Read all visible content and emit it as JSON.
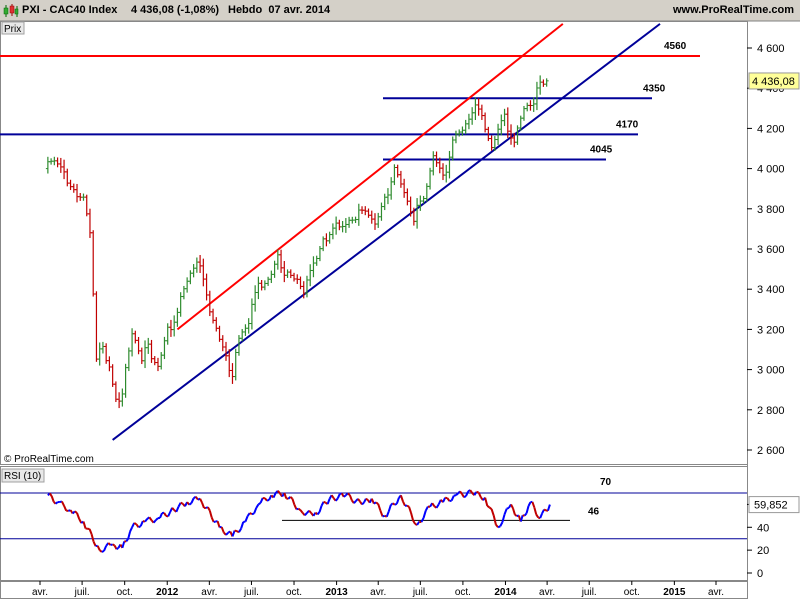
{
  "header": {
    "symbol": "PXI - CAC40 Index",
    "price_change": "4 436,08 (-1,08%)",
    "period_date": "Hebdo  07 avr. 2014",
    "website": "www.ProRealTime.com"
  },
  "colors": {
    "up_bar": "#2e8b2e",
    "down_bar": "#c00000",
    "channel_upper": "#ff0000",
    "channel_lower": "#000099",
    "rsi_line": "#0000ff",
    "price_badge_bg": "#ffff99"
  },
  "chart_data": [
    {
      "type": "ohlc",
      "panel": "price",
      "panel_label": "Prix",
      "current_price_label": "4 436,08",
      "y_ticks": [
        "2 600",
        "2 800",
        "3 000",
        "3 200",
        "3 400",
        "3 600",
        "3 800",
        "4 000",
        "4 200",
        "4 400",
        "4 600"
      ],
      "ylim": [
        2540,
        4720
      ],
      "watermark": "© ProRealTime.com",
      "horizontal_levels": [
        {
          "label": "4560",
          "value": 4560,
          "color": "#ff0000"
        },
        {
          "label": "4350",
          "value": 4350,
          "color": "#000099"
        },
        {
          "label": "4170",
          "value": 4170,
          "color": "#000099"
        },
        {
          "label": "4045",
          "value": 4045,
          "color": "#000099"
        }
      ],
      "trend_lines": [
        {
          "name": "channel-upper",
          "from": {
            "date": "2012-01-23",
            "value": 3200
          },
          "to": {
            "date": "2014-05-05",
            "value": 4720
          }
        },
        {
          "name": "channel-lower",
          "from": {
            "date": "2011-09-05",
            "value": 2650
          },
          "to": {
            "date": "2014-12-01",
            "value": 4720
          }
        }
      ],
      "series": [
        {
          "values": [
            {
              "date": "2011-04-18",
              "c": 4000
            },
            {
              "date": "2011-05-09",
              "c": 4050
            },
            {
              "date": "2011-05-30",
              "c": 3950
            },
            {
              "date": "2011-06-20",
              "c": 3900
            },
            {
              "date": "2011-07-11",
              "c": 3850
            },
            {
              "date": "2011-07-25",
              "c": 3700
            },
            {
              "date": "2011-08-08",
              "c": 3050
            },
            {
              "date": "2011-08-22",
              "c": 3100
            },
            {
              "date": "2011-09-05",
              "c": 3000
            },
            {
              "date": "2011-09-19",
              "c": 2850
            },
            {
              "date": "2011-10-03",
              "c": 2900
            },
            {
              "date": "2011-10-24",
              "c": 3200
            },
            {
              "date": "2011-11-14",
              "c": 3050
            },
            {
              "date": "2011-11-28",
              "c": 3100
            },
            {
              "date": "2011-12-19",
              "c": 3000
            },
            {
              "date": "2012-01-09",
              "c": 3200
            },
            {
              "date": "2012-01-30",
              "c": 3300
            },
            {
              "date": "2012-02-20",
              "c": 3450
            },
            {
              "date": "2012-03-12",
              "c": 3550
            },
            {
              "date": "2012-04-02",
              "c": 3350
            },
            {
              "date": "2012-04-23",
              "c": 3200
            },
            {
              "date": "2012-05-14",
              "c": 3050
            },
            {
              "date": "2012-05-28",
              "c": 3000
            },
            {
              "date": "2012-06-11",
              "c": 3150
            },
            {
              "date": "2012-07-02",
              "c": 3250
            },
            {
              "date": "2012-07-23",
              "c": 3400
            },
            {
              "date": "2012-08-13",
              "c": 3450
            },
            {
              "date": "2012-09-03",
              "c": 3550
            },
            {
              "date": "2012-09-17",
              "c": 3500
            },
            {
              "date": "2012-10-08",
              "c": 3450
            },
            {
              "date": "2012-10-29",
              "c": 3400
            },
            {
              "date": "2012-11-19",
              "c": 3500
            },
            {
              "date": "2012-12-10",
              "c": 3650
            },
            {
              "date": "2013-01-07",
              "c": 3700
            },
            {
              "date": "2013-01-28",
              "c": 3750
            },
            {
              "date": "2013-02-18",
              "c": 3750
            },
            {
              "date": "2013-03-11",
              "c": 3800
            },
            {
              "date": "2013-04-01",
              "c": 3700
            },
            {
              "date": "2013-04-22",
              "c": 3850
            },
            {
              "date": "2013-05-13",
              "c": 4000
            },
            {
              "date": "2013-06-03",
              "c": 3900
            },
            {
              "date": "2013-06-24",
              "c": 3750
            },
            {
              "date": "2013-07-15",
              "c": 3850
            },
            {
              "date": "2013-08-05",
              "c": 4050
            },
            {
              "date": "2013-08-26",
              "c": 3950
            },
            {
              "date": "2013-09-16",
              "c": 4150
            },
            {
              "date": "2013-10-07",
              "c": 4200
            },
            {
              "date": "2013-10-28",
              "c": 4300
            },
            {
              "date": "2013-11-18",
              "c": 4250
            },
            {
              "date": "2013-12-09",
              "c": 4100
            },
            {
              "date": "2014-01-06",
              "c": 4250
            },
            {
              "date": "2014-01-27",
              "c": 4150
            },
            {
              "date": "2014-02-17",
              "c": 4300
            },
            {
              "date": "2014-03-10",
              "c": 4350
            },
            {
              "date": "2014-03-24",
              "c": 4400
            },
            {
              "date": "2014-04-07",
              "c": 4436
            }
          ]
        }
      ]
    },
    {
      "type": "line",
      "panel": "rsi",
      "panel_label": "RSI (10)",
      "current_value_label": "59,852",
      "y_ticks": [
        "0",
        "20",
        "40",
        "60"
      ],
      "ylim": [
        -5,
        85
      ],
      "horizontal_levels": [
        {
          "label": "70",
          "value": 70
        },
        {
          "label": "46",
          "value": 46
        }
      ],
      "series": [
        {
          "values": [
            {
              "date": "2011-04-18",
              "v": 68
            },
            {
              "date": "2011-05-09",
              "v": 62
            },
            {
              "date": "2011-06-06",
              "v": 55
            },
            {
              "date": "2011-07-04",
              "v": 45
            },
            {
              "date": "2011-08-08",
              "v": 20
            },
            {
              "date": "2011-09-05",
              "v": 25
            },
            {
              "date": "2011-09-26",
              "v": 22
            },
            {
              "date": "2011-10-17",
              "v": 40
            },
            {
              "date": "2011-11-14",
              "v": 45
            },
            {
              "date": "2011-12-12",
              "v": 48
            },
            {
              "date": "2012-01-16",
              "v": 55
            },
            {
              "date": "2012-02-13",
              "v": 62
            },
            {
              "date": "2012-03-12",
              "v": 65
            },
            {
              "date": "2012-04-23",
              "v": 40
            },
            {
              "date": "2012-05-21",
              "v": 32
            },
            {
              "date": "2012-06-18",
              "v": 45
            },
            {
              "date": "2012-07-16",
              "v": 60
            },
            {
              "date": "2012-08-13",
              "v": 68
            },
            {
              "date": "2012-09-10",
              "v": 70
            },
            {
              "date": "2012-10-15",
              "v": 55
            },
            {
              "date": "2012-11-12",
              "v": 50
            },
            {
              "date": "2012-12-17",
              "v": 65
            },
            {
              "date": "2013-01-21",
              "v": 68
            },
            {
              "date": "2013-02-25",
              "v": 60
            },
            {
              "date": "2013-03-18",
              "v": 65
            },
            {
              "date": "2013-04-15",
              "v": 50
            },
            {
              "date": "2013-05-20",
              "v": 68
            },
            {
              "date": "2013-06-24",
              "v": 42
            },
            {
              "date": "2013-07-22",
              "v": 58
            },
            {
              "date": "2013-08-19",
              "v": 62
            },
            {
              "date": "2013-09-16",
              "v": 68
            },
            {
              "date": "2013-10-21",
              "v": 70
            },
            {
              "date": "2013-11-18",
              "v": 66
            },
            {
              "date": "2013-12-16",
              "v": 40
            },
            {
              "date": "2014-01-13",
              "v": 60
            },
            {
              "date": "2014-02-03",
              "v": 45
            },
            {
              "date": "2014-02-24",
              "v": 62
            },
            {
              "date": "2014-03-17",
              "v": 48
            },
            {
              "date": "2014-04-07",
              "v": 59.85
            }
          ]
        }
      ]
    }
  ],
  "x_axis": {
    "ticks": [
      {
        "label": "avr.",
        "date": "2011-04-01",
        "bold": false
      },
      {
        "label": "juil.",
        "date": "2011-07-01",
        "bold": false
      },
      {
        "label": "oct.",
        "date": "2011-10-01",
        "bold": false
      },
      {
        "label": "2012",
        "date": "2012-01-01",
        "bold": true
      },
      {
        "label": "avr.",
        "date": "2012-04-01",
        "bold": false
      },
      {
        "label": "juil.",
        "date": "2012-07-01",
        "bold": false
      },
      {
        "label": "oct.",
        "date": "2012-10-01",
        "bold": false
      },
      {
        "label": "2013",
        "date": "2013-01-01",
        "bold": true
      },
      {
        "label": "avr.",
        "date": "2013-04-01",
        "bold": false
      },
      {
        "label": "juil.",
        "date": "2013-07-01",
        "bold": false
      },
      {
        "label": "oct.",
        "date": "2013-10-01",
        "bold": false
      },
      {
        "label": "2014",
        "date": "2014-01-01",
        "bold": true
      },
      {
        "label": "avr.",
        "date": "2014-04-01",
        "bold": false
      },
      {
        "label": "juil.",
        "date": "2014-07-01",
        "bold": false
      },
      {
        "label": "oct.",
        "date": "2014-10-01",
        "bold": false
      },
      {
        "label": "2015",
        "date": "2015-01-01",
        "bold": true
      },
      {
        "label": "avr.",
        "date": "2015-04-01",
        "bold": false
      }
    ]
  }
}
